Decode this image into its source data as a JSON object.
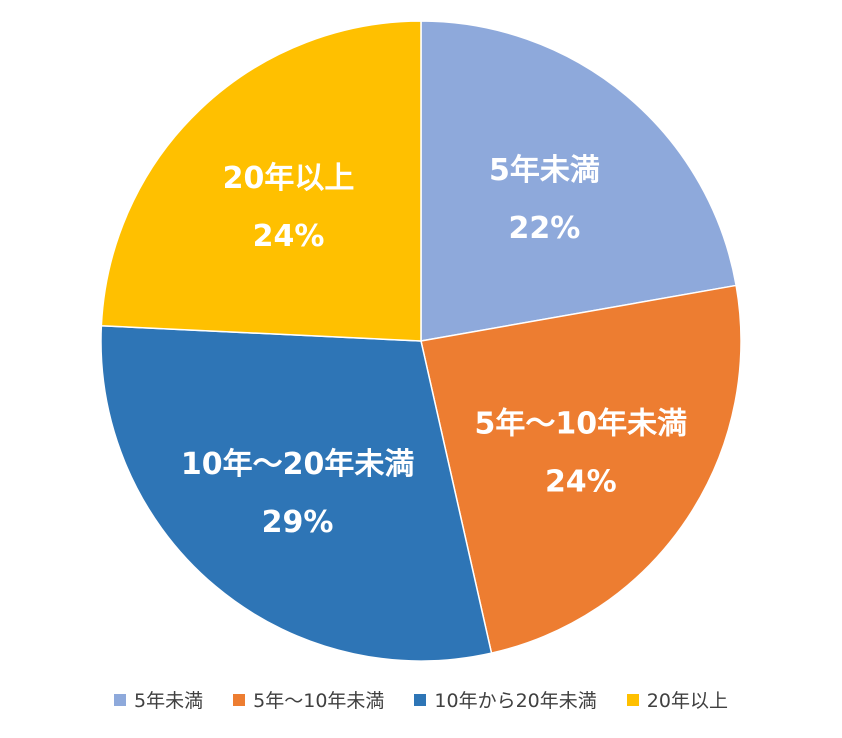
{
  "chart_data": {
    "type": "pie",
    "slices": [
      {
        "label": "5年未満",
        "percent_label": "22%",
        "value": 22,
        "color": "#8EA9DB"
      },
      {
        "label": "5年～10年未満",
        "percent_label": "24%",
        "value": 24,
        "color": "#ED7D31"
      },
      {
        "label": "10年～20年未満",
        "percent_label": "29%",
        "value": 29,
        "color": "#2E75B6"
      },
      {
        "label": "20年以上",
        "percent_label": "24%",
        "value": 24,
        "color": "#FFC000"
      }
    ],
    "legend": {
      "position": "bottom",
      "entries": [
        {
          "label": "5年未満",
          "color": "#8EA9DB"
        },
        {
          "label": "5年～10年未満",
          "color": "#ED7D31"
        },
        {
          "label": "10年から20年未満",
          "color": "#2E75B6"
        },
        {
          "label": "20年以上",
          "color": "#FFC000"
        }
      ]
    },
    "start_angle": "12 o'clock",
    "direction": "clockwise"
  }
}
